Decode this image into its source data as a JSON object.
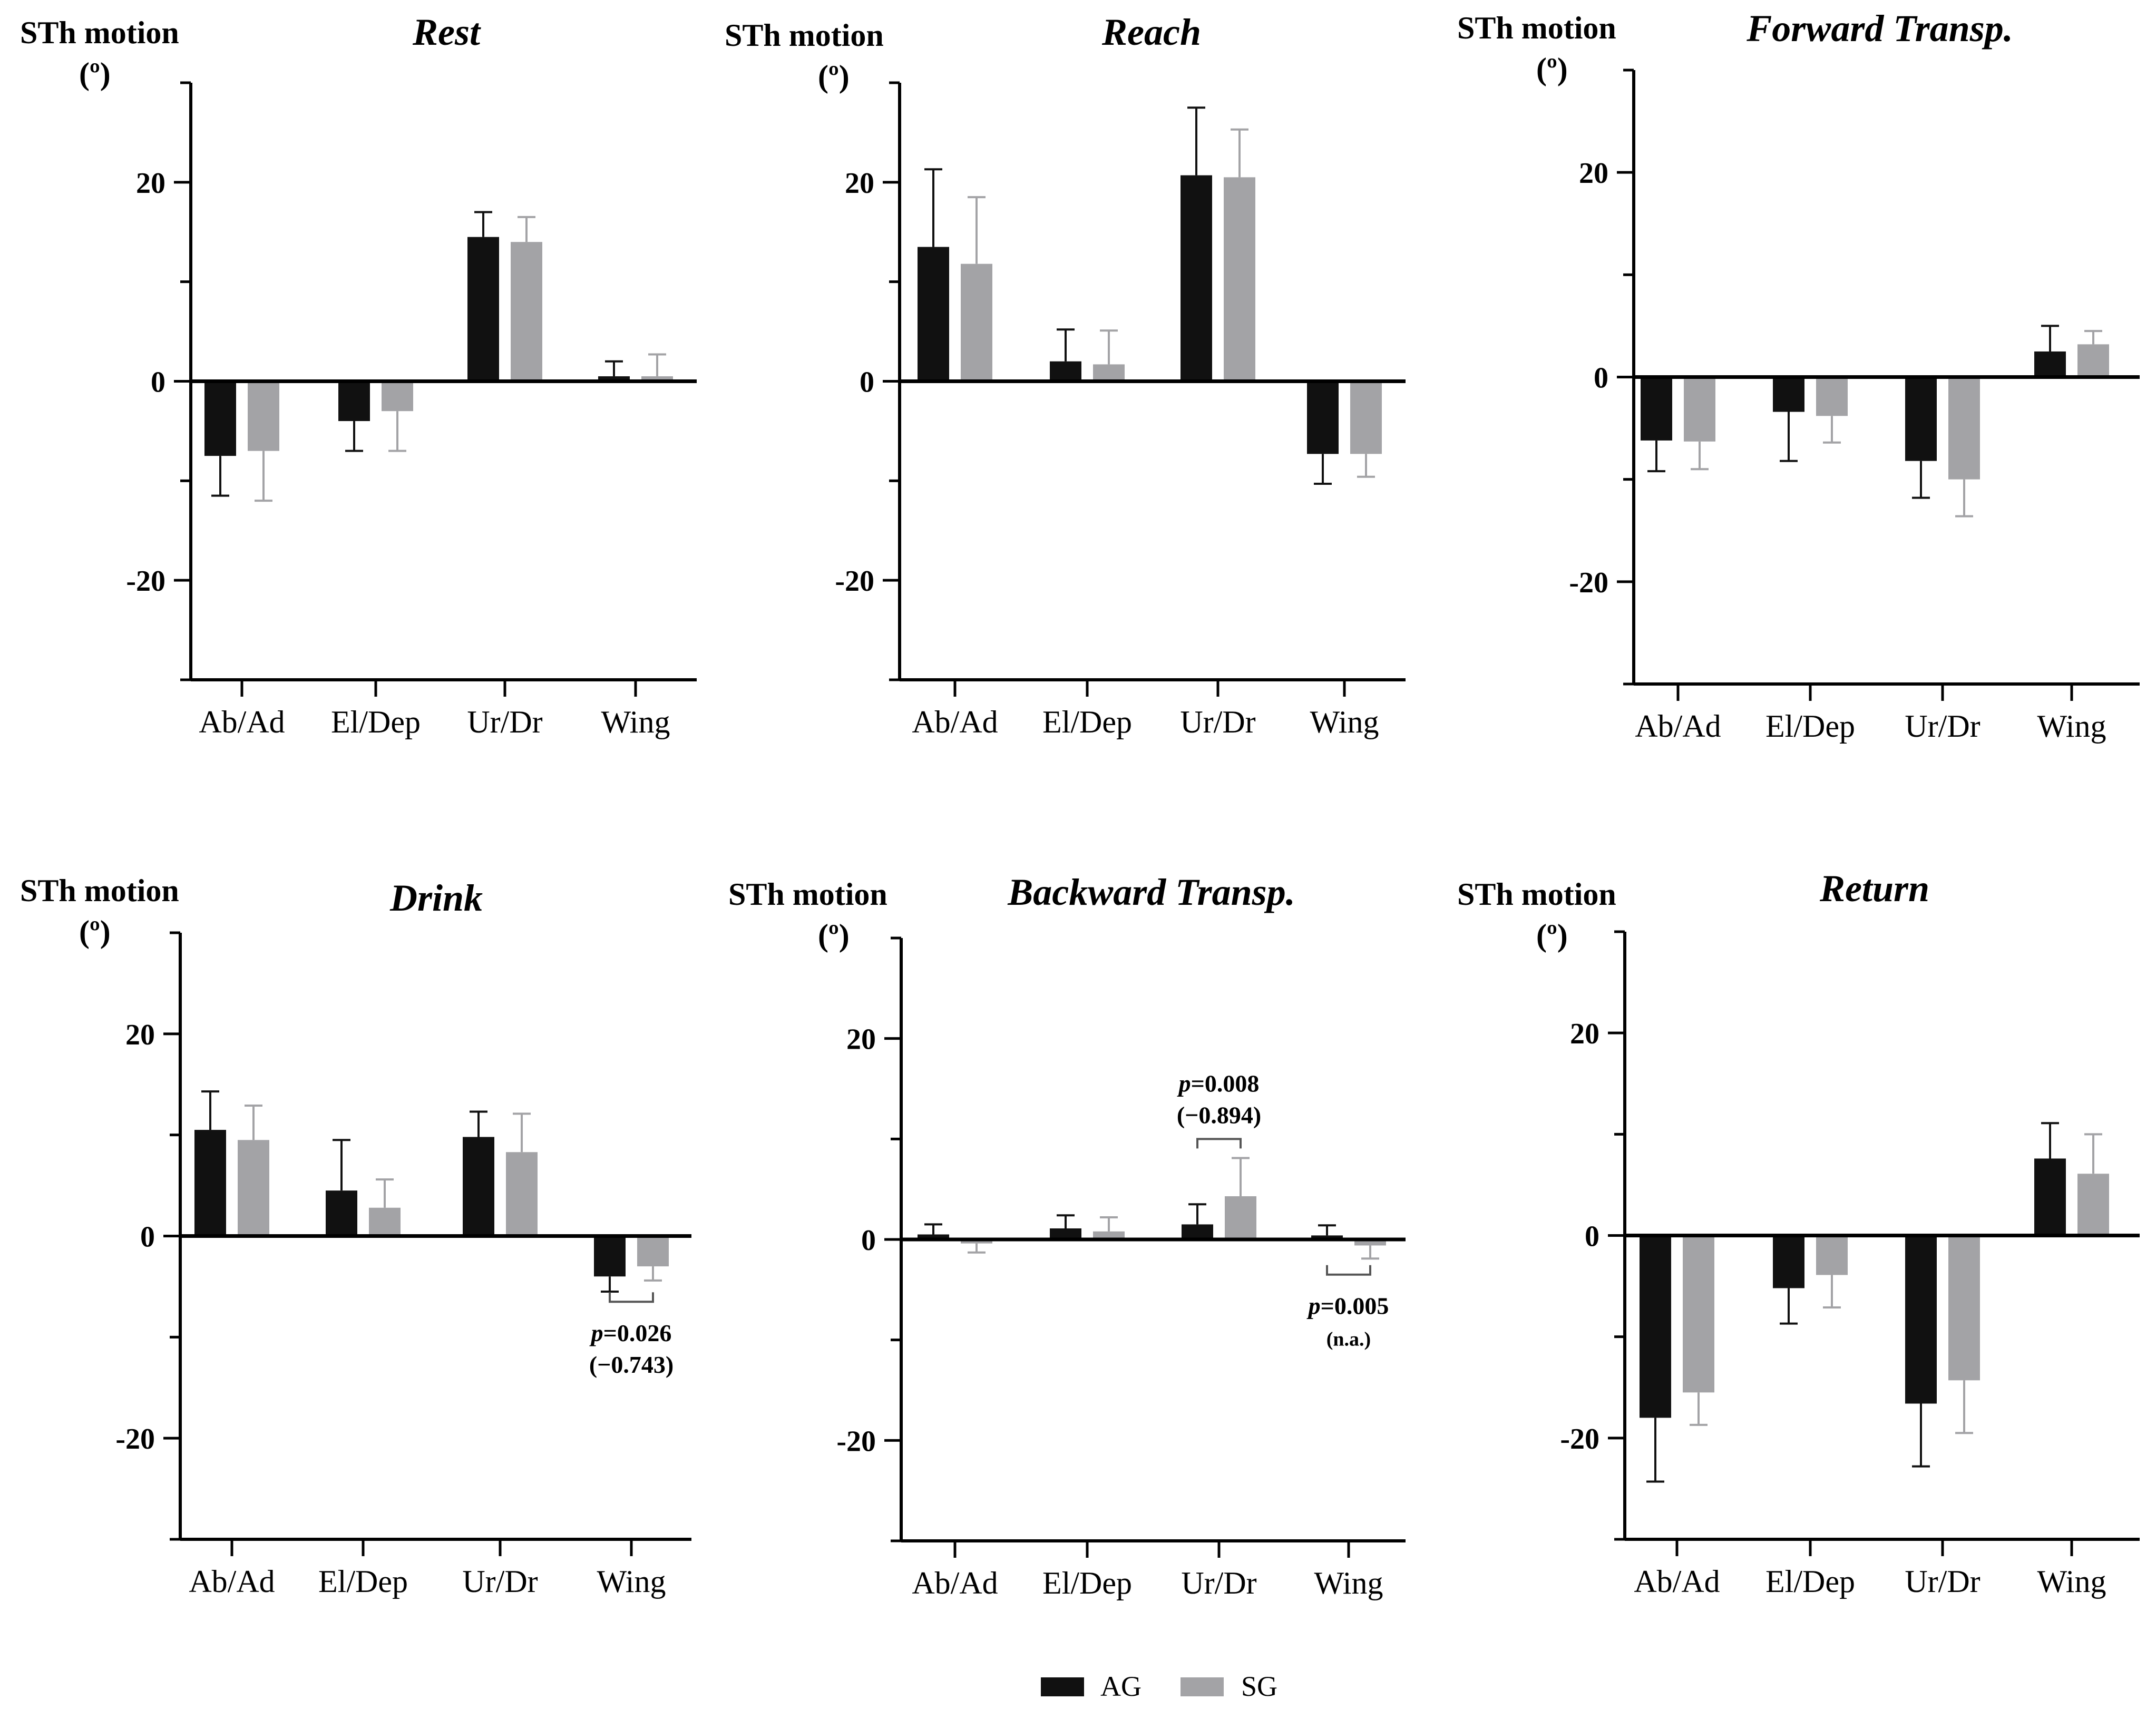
{
  "legend": {
    "ag_label": "AG",
    "sg_label": "SG"
  },
  "colors": {
    "ag": "#111111",
    "sg": "#a3a3a6"
  },
  "chart_data": [
    {
      "type": "bar",
      "title": "Rest",
      "ylabel": "STh motion",
      "yunit": "(º)",
      "categories": [
        "Ab/Ad",
        "El/Dep",
        "Ur/Dr",
        "Wing"
      ],
      "ylim": [
        -30,
        30
      ],
      "yticks": [
        -20,
        0,
        20
      ],
      "series": [
        {
          "name": "AG",
          "values": [
            -7.5,
            -4,
            14.5,
            0.5
          ],
          "errors": [
            4,
            3,
            2.5,
            1.5
          ]
        },
        {
          "name": "SG",
          "values": [
            -7,
            -3,
            14,
            0.5
          ],
          "errors": [
            5,
            4,
            2.5,
            2.2
          ]
        }
      ],
      "annotations": []
    },
    {
      "type": "bar",
      "title": "Reach",
      "ylabel": "STh motion",
      "yunit": "(º)",
      "categories": [
        "Ab/Ad",
        "El/Dep",
        "Ur/Dr",
        "Wing"
      ],
      "ylim": [
        -30,
        30
      ],
      "yticks": [
        -20,
        0,
        20
      ],
      "series": [
        {
          "name": "AG",
          "values": [
            13.5,
            2,
            20.7,
            -7.3
          ],
          "errors": [
            7.8,
            3.2,
            6.8,
            3
          ]
        },
        {
          "name": "SG",
          "values": [
            11.8,
            1.7,
            20.5,
            -7.3
          ],
          "errors": [
            6.7,
            3.4,
            4.8,
            2.3
          ]
        }
      ],
      "annotations": []
    },
    {
      "type": "bar",
      "title": "Forward Transp.",
      "ylabel": "STh motion",
      "yunit": "(º)",
      "categories": [
        "Ab/Ad",
        "El/Dep",
        "Ur/Dr",
        "Wing"
      ],
      "ylim": [
        -30,
        30
      ],
      "yticks": [
        -20,
        0,
        20
      ],
      "series": [
        {
          "name": "AG",
          "values": [
            -6.2,
            -3.4,
            -8.2,
            2.5
          ],
          "errors": [
            3,
            4.8,
            3.6,
            2.5
          ]
        },
        {
          "name": "SG",
          "values": [
            -6.3,
            -3.8,
            -10,
            3.2
          ],
          "errors": [
            2.7,
            2.6,
            3.6,
            1.3
          ]
        }
      ],
      "annotations": []
    },
    {
      "type": "bar",
      "title": "Drink",
      "ylabel": "STh motion",
      "yunit": "(º)",
      "categories": [
        "Ab/Ad",
        "El/Dep",
        "Ur/Dr",
        "Wing"
      ],
      "ylim": [
        -30,
        30
      ],
      "yticks": [
        -20,
        0,
        20
      ],
      "series": [
        {
          "name": "AG",
          "values": [
            10.5,
            4.5,
            9.8,
            -4
          ],
          "errors": [
            3.8,
            5,
            2.5,
            1.5
          ]
        },
        {
          "name": "SG",
          "values": [
            9.5,
            2.8,
            8.3,
            -3
          ],
          "errors": [
            3.4,
            2.8,
            3.8,
            1.4
          ]
        }
      ],
      "annotations": [
        {
          "category_index": 3,
          "p_label": "p",
          "p_value": "=0.026",
          "effect": "(−0.743)",
          "bracket_y": -6.5
        }
      ]
    },
    {
      "type": "bar",
      "title": "Backward Transp.",
      "ylabel": "STh motion",
      "yunit": "(º)",
      "categories": [
        "Ab/Ad",
        "El/Dep",
        "Ur/Dr",
        "Wing"
      ],
      "ylim": [
        -30,
        30
      ],
      "yticks": [
        -20,
        0,
        20
      ],
      "series": [
        {
          "name": "AG",
          "values": [
            0.5,
            1.1,
            1.5,
            0.4
          ],
          "errors": [
            1,
            1.3,
            2,
            1
          ]
        },
        {
          "name": "SG",
          "values": [
            -0.4,
            0.8,
            4.3,
            -0.6
          ],
          "errors": [
            0.9,
            1.4,
            3.8,
            1.3
          ]
        }
      ],
      "annotations": [
        {
          "category_index": 2,
          "p_label": "p",
          "p_value": "=0.008",
          "effect": "(−0.894)",
          "bracket_y": 10
        },
        {
          "category_index": 3,
          "p_label": "p",
          "p_value": "=0.005",
          "effect": "(n.a.)",
          "bracket_y": -3.5
        }
      ]
    },
    {
      "type": "bar",
      "title": "Return",
      "ylabel": "STh motion",
      "yunit": "(º)",
      "categories": [
        "Ab/Ad",
        "El/Dep",
        "Ur/Dr",
        "Wing"
      ],
      "ylim": [
        -30,
        30
      ],
      "yticks": [
        -20,
        0,
        20
      ],
      "series": [
        {
          "name": "AG",
          "values": [
            -18,
            -5.2,
            -16.6,
            7.6
          ],
          "errors": [
            6.3,
            3.5,
            6.2,
            3.5
          ]
        },
        {
          "name": "SG",
          "values": [
            -15.5,
            -3.9,
            -14.3,
            6.1
          ],
          "errors": [
            3.2,
            3.2,
            5.2,
            3.9
          ]
        }
      ],
      "annotations": []
    }
  ]
}
